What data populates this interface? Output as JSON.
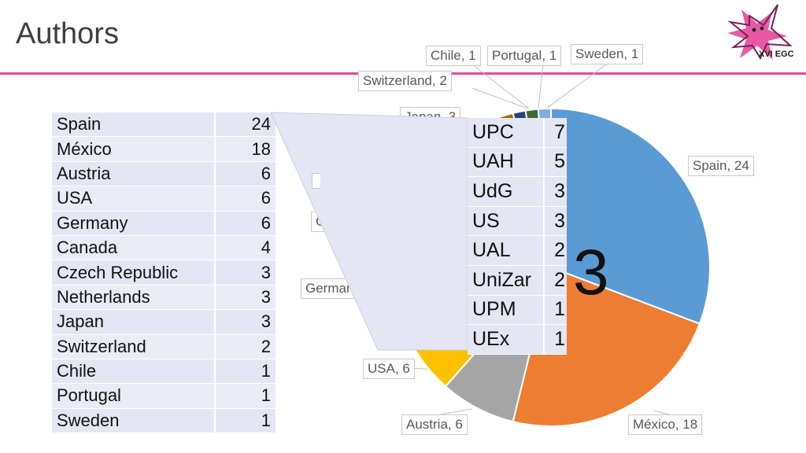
{
  "page": {
    "title": "Authors",
    "logo_text": "XVI EGC"
  },
  "table": {
    "rows": [
      {
        "name": "Spain",
        "value": "24"
      },
      {
        "name": "México",
        "value": "18"
      },
      {
        "name": "Austria",
        "value": "6"
      },
      {
        "name": "USA",
        "value": "6"
      },
      {
        "name": "Germany",
        "value": "6"
      },
      {
        "name": "Canada",
        "value": "4"
      },
      {
        "name": "Czech Republic",
        "value": "3"
      },
      {
        "name": "Netherlands",
        "value": "3"
      },
      {
        "name": "Japan",
        "value": "3"
      },
      {
        "name": "Switzerland",
        "value": "2"
      },
      {
        "name": "Chile",
        "value": "1"
      },
      {
        "name": "Portugal",
        "value": "1"
      },
      {
        "name": "Sweden",
        "value": "1"
      }
    ]
  },
  "spain_breakdown": {
    "rows": [
      {
        "name": "UPC",
        "value": "7"
      },
      {
        "name": "UAH",
        "value": "5"
      },
      {
        "name": "UdG",
        "value": "3"
      },
      {
        "name": "US",
        "value": "3"
      },
      {
        "name": "UAL",
        "value": "2"
      },
      {
        "name": "UniZar",
        "value": "2"
      },
      {
        "name": "UPM",
        "value": "1"
      },
      {
        "name": "UEx",
        "value": "1"
      }
    ]
  },
  "pie_partial_label": "3",
  "chart_data": {
    "type": "pie",
    "title": "",
    "slices": [
      {
        "label": "Spain",
        "value": 24,
        "color": "#5b9bd5",
        "callout": "Spain, 24"
      },
      {
        "label": "México",
        "value": 18,
        "color": "#ed7d31",
        "callout": "México, 18"
      },
      {
        "label": "Austria",
        "value": 6,
        "color": "#a5a5a5",
        "callout": "Austria, 6"
      },
      {
        "label": "USA",
        "value": 6,
        "color": "#ffc000",
        "callout": "USA, 6"
      },
      {
        "label": "Germany",
        "value": 6,
        "color": "#4472c4",
        "callout": "Germany, 6"
      },
      {
        "label": "Canada",
        "value": 4,
        "color": "#70ad47",
        "callout": "Canad"
      },
      {
        "label": "Czech Republic",
        "value": 3,
        "color": "#255e91",
        "callout": ""
      },
      {
        "label": "Netherlands",
        "value": 3,
        "color": "#9e480e",
        "callout": ""
      },
      {
        "label": "Japan",
        "value": 3,
        "color": "#636363",
        "callout": "Japan, 3"
      },
      {
        "label": "Switzerland",
        "value": 2,
        "color": "#997300",
        "callout": "Switzerland, 2"
      },
      {
        "label": "Chile",
        "value": 1,
        "color": "#264478",
        "callout": "Chile, 1"
      },
      {
        "label": "Portugal",
        "value": 1,
        "color": "#43682b",
        "callout": "Portugal, 1"
      },
      {
        "label": "Sweden",
        "value": 1,
        "color": "#7cafdd",
        "callout": "Sweden, 1"
      }
    ]
  }
}
